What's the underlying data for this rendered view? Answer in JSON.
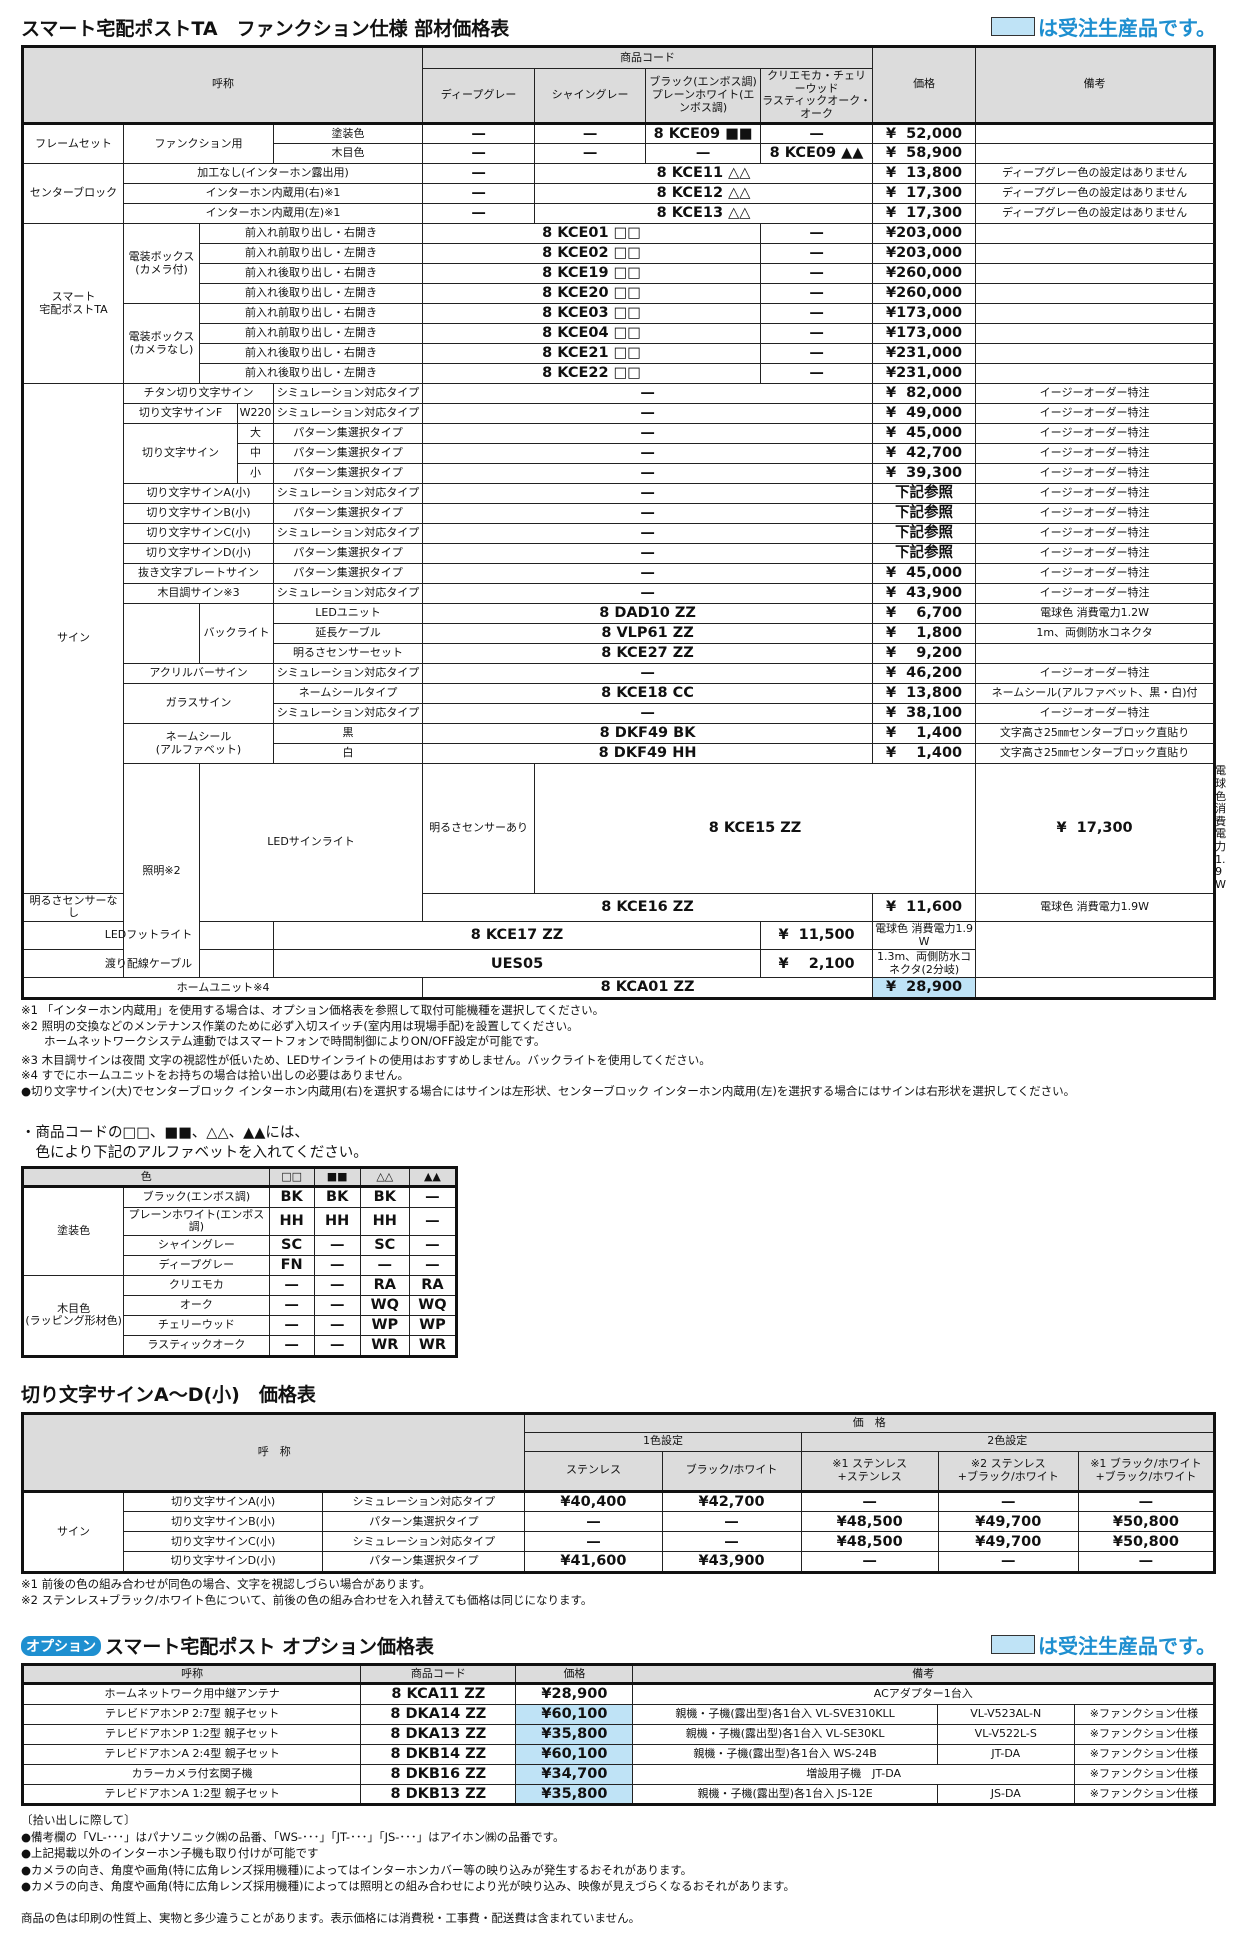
{
  "colors": {
    "accent_blue": "#1e8fd0",
    "highlight": "#bfe3f6",
    "header_bg": "#dcdcdc"
  },
  "legend_text": "は受注生産品です。",
  "main": {
    "title": "スマート宅配ポストTA　ファンクション仕様 部材価格表",
    "header": [
      [
        "呼称",
        "商品コード",
        "価格",
        "備考"
      ],
      [
        "ディープグレー",
        "シャイングレー",
        "ブラック(エンボス調)\nプレーンホワイト(エンボス調)",
        "クリエモカ・チェリーウッド\nラスティックオーク・オーク"
      ]
    ],
    "rows": [
      [
        "フレームセット",
        "ファンクション用",
        "塗装色",
        "—",
        "—",
        "8 KCE09 ■■",
        "—",
        "¥  52,000",
        ""
      ],
      [
        "木目色",
        "—",
        "—",
        "—",
        "8 KCE09 ▲▲",
        "¥  58,900",
        ""
      ],
      [
        "センターブロック",
        "加工なし(インターホン露出用)",
        "—",
        "8 KCE11 △△",
        "¥  13,800",
        "ディープグレー色の設定はありません"
      ],
      [
        "インターホン内蔵用(右)※1",
        "—",
        "8 KCE12 △△",
        "¥  17,300",
        "ディープグレー色の設定はありません"
      ],
      [
        "インターホン内蔵用(左)※1",
        "—",
        "8 KCE13 △△",
        "¥  17,300",
        "ディープグレー色の設定はありません"
      ],
      [
        "スマート\n宅配ポストTA",
        "電装ボックス\n(カメラ付)",
        "前入れ前取り出し・右開き",
        "8 KCE01 □□",
        "—",
        "¥203,000",
        ""
      ],
      [
        "前入れ前取り出し・左開き",
        "8 KCE02 □□",
        "—",
        "¥203,000",
        ""
      ],
      [
        "前入れ後取り出し・右開き",
        "8 KCE19 □□",
        "—",
        "¥260,000",
        ""
      ],
      [
        "前入れ後取り出し・左開き",
        "8 KCE20 □□",
        "—",
        "¥260,000",
        ""
      ],
      [
        "電装ボックス\n(カメラなし)",
        "前入れ前取り出し・右開き",
        "8 KCE03 □□",
        "—",
        "¥173,000",
        ""
      ],
      [
        "前入れ前取り出し・左開き",
        "8 KCE04 □□",
        "—",
        "¥173,000",
        ""
      ],
      [
        "前入れ後取り出し・右開き",
        "8 KCE21 □□",
        "—",
        "¥231,000",
        ""
      ],
      [
        "前入れ後取り出し・左開き",
        "8 KCE22 □□",
        "—",
        "¥231,000",
        ""
      ],
      [
        "サイン",
        "チタン切り文字サイン",
        "シミュレーション対応タイプ",
        "—",
        "¥  82,000",
        "イージーオーダー特注"
      ],
      [
        "切り文字サインF",
        "W220",
        "シミュレーション対応タイプ",
        "—",
        "¥  49,000",
        "イージーオーダー特注"
      ],
      [
        "切り文字サイン",
        "大",
        "パターン集選択タイプ",
        "—",
        "¥  45,000",
        "イージーオーダー特注"
      ],
      [
        "中",
        "パターン集選択タイプ",
        "—",
        "¥  42,700",
        "イージーオーダー特注"
      ],
      [
        "小",
        "パターン集選択タイプ",
        "—",
        "¥  39,300",
        "イージーオーダー特注"
      ],
      [
        "切り文字サインA(小)",
        "シミュレーション対応タイプ",
        "—",
        "下記参照",
        "イージーオーダー特注"
      ],
      [
        "切り文字サインB(小)",
        "パターン集選択タイプ",
        "—",
        "下記参照",
        "イージーオーダー特注"
      ],
      [
        "切り文字サインC(小)",
        "シミュレーション対応タイプ",
        "—",
        "下記参照",
        "イージーオーダー特注"
      ],
      [
        "切り文字サインD(小)",
        "パターン集選択タイプ",
        "—",
        "下記参照",
        "イージーオーダー特注"
      ],
      [
        "抜き文字プレートサイン",
        "パターン集選択タイプ",
        "—",
        "¥  45,000",
        "イージーオーダー特注"
      ],
      [
        "木目調サイン※3",
        "シミュレーション対応タイプ",
        "—",
        "¥  43,900",
        "イージーオーダー特注"
      ],
      [
        "",
        "バックライト",
        "LEDユニット",
        "8 DAD10 ZZ",
        "¥    6,700",
        "電球色 消費電力1.2W"
      ],
      [
        "延長ケーブル",
        "8 VLP61 ZZ",
        "¥    1,800",
        "1m、両側防水コネクタ"
      ],
      [
        "明るさセンサーセット",
        "8 KCE27 ZZ",
        "¥    9,200",
        ""
      ],
      [
        "アクリルバーサイン",
        "シミュレーション対応タイプ",
        "—",
        "¥  46,200",
        "イージーオーダー特注"
      ],
      [
        "ガラスサイン",
        "ネームシールタイプ",
        "8 KCE18 CC",
        "¥  13,800",
        "ネームシール(アルファベット、黒・白)付"
      ],
      [
        "シミュレーション対応タイプ",
        "—",
        "¥  38,100",
        "イージーオーダー特注"
      ],
      [
        "ネームシール\n(アルファベット)",
        "黒",
        "8 DKF49 BK",
        "¥    1,400",
        "文字高さ25㎜センターブロック直貼り"
      ],
      [
        "白",
        "8 DKF49 HH",
        "¥    1,400",
        "文字高さ25㎜センターブロック直貼り"
      ],
      [
        "照明※2",
        "LEDサインライト",
        "明るさセンサーあり",
        "8 KCE15 ZZ",
        "¥  17,300",
        "電球色 消費電力1.9W"
      ],
      [
        "明るさセンサーなし",
        "8 KCE16 ZZ",
        "¥  11,600",
        "電球色 消費電力1.9W"
      ],
      [
        "LEDフットライト",
        "8 KCE17 ZZ",
        "¥  11,500",
        "電球色 消費電力1.9W"
      ],
      [
        "渡り配線ケーブル",
        "UES05",
        "¥    2,100",
        "1.3m、両側防水コネクタ(2分岐)"
      ],
      [
        "ホームユニット※4",
        "8 KCA01 ZZ",
        "¥  28,900",
        ""
      ]
    ],
    "notes": [
      "※1 「インターホン内蔵用」を使用する場合は、オプション価格表を参照して取付可能機種を選択してください。",
      "※2 照明の交換などのメンテナンス作業のために必ず入切スイッチ(室内用は現場手配)を設置してください。",
      "　　ホームネットワークシステム連動ではスマートフォンで時間制御によりON/OFF設定が可能です。",
      "※3 木目調サインは夜間 文字の視認性が低いため、LEDサインライトの使用はおすすめしません。バックライトを使用してください。",
      "※4 すでにホームユニットをお持ちの場合は拾い出しの必要はありません。",
      "●切り文字サイン(大)でセンターブロック インターホン内蔵用(右)を選択する場合にはサインは左形状、センターブロック インターホン内蔵用(左)を選択する場合にはサインは右形状を選択してください。"
    ]
  },
  "color_code": {
    "intro": [
      "・商品コードの□□、■■、△△、▲▲には、",
      "　色により下記のアルファベットを入れてください。"
    ],
    "header": [
      [
        "色",
        "□□",
        "■■",
        "△△",
        "▲▲"
      ]
    ],
    "rows": [
      [
        "塗装色",
        "ブラック(エンボス調)",
        "BK",
        "BK",
        "BK",
        "—"
      ],
      [
        "プレーンホワイト(エンボス調)",
        "HH",
        "HH",
        "HH",
        "—"
      ],
      [
        "シャイングレー",
        "SC",
        "—",
        "SC",
        "—"
      ],
      [
        "ディープグレー",
        "FN",
        "—",
        "—",
        "—"
      ],
      [
        "木目色\n(ラッピング形材色)",
        "クリエモカ",
        "—",
        "—",
        "RA",
        "RA"
      ],
      [
        "オーク",
        "—",
        "—",
        "WQ",
        "WQ"
      ],
      [
        "チェリーウッド",
        "—",
        "—",
        "WP",
        "WP"
      ],
      [
        "ラスティックオーク",
        "—",
        "—",
        "WR",
        "WR"
      ]
    ]
  },
  "sign_price": {
    "title": "切り文字サインA～D(小)　価格表",
    "header": [
      [
        "呼　称",
        "価　格"
      ],
      [
        "1色設定",
        "2色設定"
      ],
      [
        "ステンレス",
        "ブラック/ホワイト",
        "※1 ステンレス\n+ステンレス",
        "※2 ステンレス\n+ブラック/ホワイト",
        "※1 ブラック/ホワイト\n+ブラック/ホワイト"
      ]
    ],
    "rows": [
      [
        "サイン",
        "切り文字サインA(小)",
        "シミュレーション対応タイプ",
        "¥40,400",
        "¥42,700",
        "—",
        "—",
        "—"
      ],
      [
        "切り文字サインB(小)",
        "パターン集選択タイプ",
        "—",
        "—",
        "¥48,500",
        "¥49,700",
        "¥50,800"
      ],
      [
        "切り文字サインC(小)",
        "シミュレーション対応タイプ",
        "—",
        "—",
        "¥48,500",
        "¥49,700",
        "¥50,800"
      ],
      [
        "切り文字サインD(小)",
        "パターン集選択タイプ",
        "¥41,600",
        "¥43,900",
        "—",
        "—",
        "—"
      ]
    ],
    "notes": [
      "※1 前後の色の組み合わせが同色の場合、文字を視認しづらい場合があります。",
      "※2 ステンレス+ブラック/ホワイト色について、前後の色の組み合わせを入れ替えても価格は同じになります。"
    ]
  },
  "option": {
    "badge": "オプション",
    "title": "スマート宅配ポスト オプション価格表",
    "header": [
      [
        "呼称",
        "商品コード",
        "価格",
        "備考"
      ]
    ],
    "rows": [
      [
        "ホームネットワーク用中継アンテナ",
        "8 KCA11 ZZ",
        "¥28,900",
        "ACアダプター1台入"
      ],
      [
        "テレビドアホンP 2:7型 親子セット",
        "8 DKA14 ZZ",
        "¥60,100",
        "親機・子機(露出型)各1台入 VL-SVE310KLL",
        "VL-V523AL-N",
        "※ファンクション仕様"
      ],
      [
        "テレビドアホンP 1:2型 親子セット",
        "8 DKA13 ZZ",
        "¥35,800",
        "親機・子機(露出型)各1台入 VL-SE30KL",
        "VL-V522L-S",
        "※ファンクション仕様"
      ],
      [
        "テレビドアホンA 2:4型 親子セット",
        "8 DKB14 ZZ",
        "¥60,100",
        "親機・子機(露出型)各1台入 WS-24B",
        "JT-DA",
        "※ファンクション仕様"
      ],
      [
        "カラーカメラ付玄関子機",
        "8 DKB16 ZZ",
        "¥34,700",
        "増設用子機　JT-DA",
        "※ファンクション仕様"
      ],
      [
        "テレビドアホンA 1:2型 親子セット",
        "8 DKB13 ZZ",
        "¥35,800",
        "親機・子機(露出型)各1台入 JS-12E",
        "JS-DA",
        "※ファンクション仕様"
      ]
    ],
    "notes": [
      "〔拾い出しに際して〕",
      "●備考欄の「VL-･･･」はパナソニック㈱の品番、「WS-･･･」「JT-･･･」「JS-･･･」はアイホン㈱の品番です。",
      "●上記掲載以外のインターホン子機も取り付けが可能です",
      "●カメラの向き、角度や画角(特に広角レンズ採用機種)によってはインターホンカバー等の映り込みが発生するおそれがあります。",
      "●カメラの向き、角度や画角(特に広角レンズ採用機種)によっては照明との組み合わせにより光が映り込み、映像が見えづらくなるおそれがあります。"
    ],
    "footer": "商品の色は印刷の性質上、実物と多少違うことがあります。表示価格には消費税・工事費・配送費は含まれていません。"
  }
}
